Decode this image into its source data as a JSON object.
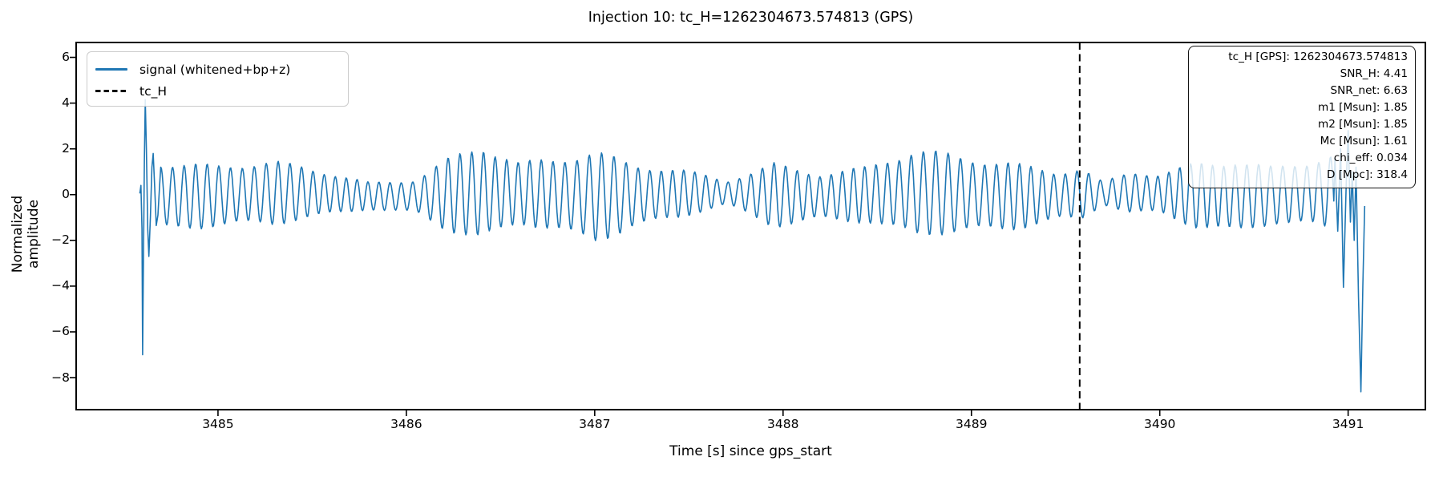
{
  "chart_data": {
    "type": "line",
    "title": "Injection 10: tc_H=1262304673.574813 (GPS)",
    "xlabel": "Time [s] since gps_start",
    "ylabel": "Normalized amplitude",
    "xlim": [
      3484.247,
      3491.41
    ],
    "ylim": [
      -9.4,
      6.65
    ],
    "x_ticks": [
      3485,
      3486,
      3487,
      3488,
      3489,
      3490,
      3491
    ],
    "y_ticks": [
      6,
      4,
      2,
      0,
      -2,
      -4,
      -6,
      -8
    ],
    "grid": false,
    "legend_position": "upper left",
    "vline": {
      "name": "tc_H",
      "x": 3489.574813,
      "color": "#000000",
      "style": "dashed"
    },
    "signal": {
      "name": "signal (whitened+bp+z)",
      "color": "#1f77b4",
      "t_start": 3484.585,
      "t_end": 3491.088,
      "base_freq_hz": 16.25,
      "sample_dt": 0.004,
      "body_range": [
        3484.696,
        3490.925
      ],
      "start_transient": [
        [
          3484.585,
          0.05
        ],
        [
          3484.591,
          0.4
        ],
        [
          3484.5965,
          -1.5
        ],
        [
          3484.6,
          -7.0
        ],
        [
          3484.604,
          -3.0
        ],
        [
          3484.609,
          1.5
        ],
        [
          3484.614,
          4.15
        ],
        [
          3484.62,
          2.0
        ],
        [
          3484.627,
          -1.5
        ],
        [
          3484.633,
          -2.7
        ],
        [
          3484.641,
          -1.0
        ],
        [
          3484.649,
          1.2
        ],
        [
          3484.656,
          1.8
        ],
        [
          3484.664,
          0.3
        ],
        [
          3484.672,
          -1.35
        ],
        [
          3484.681,
          -0.9
        ],
        [
          3484.69,
          0.4
        ]
      ],
      "end_transient": [
        [
          3490.93,
          1.6
        ],
        [
          3490.945,
          -1.6
        ],
        [
          3490.96,
          2.0
        ],
        [
          3490.975,
          -4.05
        ],
        [
          3490.99,
          0.5
        ],
        [
          3491.0,
          2.8
        ],
        [
          3491.012,
          -1.2
        ],
        [
          3491.022,
          1.0
        ],
        [
          3491.032,
          -2.0
        ],
        [
          3491.042,
          1.2
        ],
        [
          3491.055,
          -4.5
        ],
        [
          3491.068,
          -8.62
        ],
        [
          3491.078,
          -4.0
        ],
        [
          3491.088,
          -0.5
        ]
      ],
      "envelope": [
        [
          3484.7,
          1.4
        ],
        [
          3485.0,
          1.25
        ],
        [
          3485.3,
          1.3
        ],
        [
          3485.55,
          0.95
        ],
        [
          3485.8,
          0.55
        ],
        [
          3486.05,
          0.7
        ],
        [
          3486.2,
          1.4
        ],
        [
          3486.4,
          2.0
        ],
        [
          3486.6,
          1.25
        ],
        [
          3486.8,
          1.5
        ],
        [
          3487.0,
          1.9
        ],
        [
          3487.2,
          1.3
        ],
        [
          3487.45,
          1.0
        ],
        [
          3487.7,
          0.5
        ],
        [
          3487.95,
          1.3
        ],
        [
          3488.2,
          0.95
        ],
        [
          3488.45,
          1.15
        ],
        [
          3488.7,
          1.8
        ],
        [
          3488.95,
          1.55
        ],
        [
          3489.2,
          1.4
        ],
        [
          3489.45,
          1.0
        ],
        [
          3489.58,
          1.1
        ],
        [
          3489.7,
          0.45
        ],
        [
          3489.85,
          0.9
        ],
        [
          3490.0,
          0.8
        ],
        [
          3490.2,
          1.35
        ],
        [
          3490.4,
          1.5
        ],
        [
          3490.6,
          1.15
        ],
        [
          3490.8,
          1.35
        ],
        [
          3490.925,
          1.6
        ]
      ],
      "amp_ripple": {
        "amp": 0.1,
        "freq": 2.3,
        "phase": 0.8
      },
      "freq_wobble": [
        {
          "amp": 0.18,
          "freq": 0.47,
          "phase": 1.1
        },
        {
          "amp": 0.08,
          "freq": 1.13,
          "phase": 0.3
        }
      ],
      "dc_wander": {
        "amp": 0.08,
        "freq": 0.9,
        "phase": 0.0
      }
    }
  },
  "legend": {
    "items": [
      {
        "label": "signal (whitened+bp+z)",
        "color": "#1f77b4",
        "style": "solid"
      },
      {
        "label": "tc_H",
        "color": "#000000",
        "style": "dashed"
      }
    ]
  },
  "info_box": {
    "lines": [
      "tc_H [GPS]: 1262304673.574813",
      "SNR_H: 4.41",
      "SNR_net: 6.63",
      "m1 [Msun]: 1.85",
      "m2 [Msun]: 1.85",
      "Mc [Msun]: 1.61",
      "chi_eff: 0.034",
      "D [Mpc]: 318.4"
    ]
  }
}
